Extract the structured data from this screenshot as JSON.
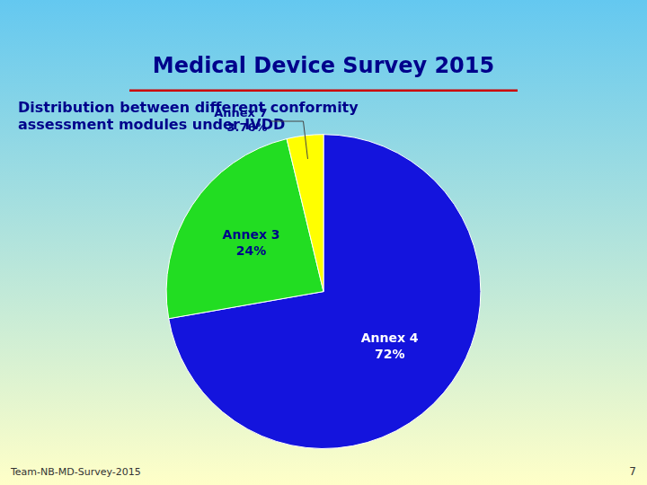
{
  "chart_data": {
    "type": "pie",
    "title": "Medical Device Survey 2015",
    "subtitle": [
      "Distribution between different conformity",
      "assessment modules under IVDD"
    ],
    "categories": [
      "Annex 4",
      "Annex 3",
      "Annex 7"
    ],
    "values": [
      72.24,
      24.0,
      3.76
    ],
    "value_labels": [
      "72%",
      "24%",
      "3.76%"
    ],
    "colors": [
      "#1414dd",
      "#22dd22",
      "#ffff00"
    ],
    "data_labels": true,
    "annotations": [
      "Team-NB-MD-Survey-2015",
      "7"
    ]
  }
}
